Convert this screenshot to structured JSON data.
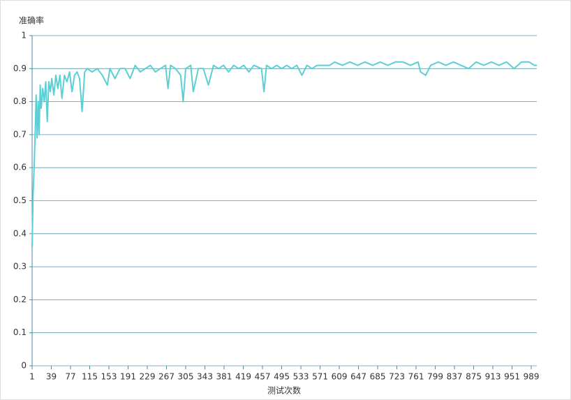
{
  "chart_data": {
    "type": "line",
    "y_label": "准确率",
    "x_label": "测试次数",
    "xlim": [
      1,
      1000
    ],
    "xticks": [
      1,
      39,
      77,
      115,
      153,
      191,
      229,
      267,
      305,
      343,
      381,
      419,
      457,
      495,
      533,
      571,
      609,
      647,
      685,
      723,
      761,
      799,
      837,
      875,
      913,
      951,
      989
    ],
    "ylim": [
      0,
      1
    ],
    "yticks": [
      0,
      0.1,
      0.2,
      0.3,
      0.4,
      0.5,
      0.6,
      0.7,
      0.8,
      0.9,
      1
    ],
    "grid": true,
    "series": [
      {
        "color": "#5ccfd4",
        "x": [
          1,
          2,
          3,
          5,
          7,
          9,
          11,
          13,
          15,
          17,
          19,
          22,
          25,
          28,
          31,
          34,
          37,
          40,
          44,
          48,
          52,
          56,
          60,
          65,
          70,
          75,
          80,
          85,
          90,
          95,
          100,
          105,
          110,
          120,
          130,
          140,
          150,
          155,
          165,
          175,
          185,
          195,
          205,
          215,
          225,
          235,
          245,
          255,
          265,
          270,
          275,
          285,
          295,
          300,
          305,
          315,
          320,
          330,
          340,
          350,
          360,
          370,
          380,
          390,
          400,
          410,
          420,
          430,
          440,
          455,
          460,
          465,
          475,
          485,
          495,
          505,
          515,
          525,
          535,
          545,
          555,
          565,
          575,
          590,
          600,
          615,
          630,
          645,
          660,
          675,
          690,
          705,
          720,
          735,
          750,
          765,
          770,
          780,
          790,
          805,
          820,
          835,
          850,
          865,
          880,
          895,
          910,
          925,
          940,
          955,
          970,
          985,
          995,
          1000
        ],
        "values": [
          0.36,
          0.44,
          0.52,
          0.6,
          0.7,
          0.82,
          0.69,
          0.8,
          0.7,
          0.85,
          0.78,
          0.84,
          0.8,
          0.86,
          0.74,
          0.86,
          0.83,
          0.87,
          0.82,
          0.88,
          0.84,
          0.88,
          0.81,
          0.88,
          0.86,
          0.89,
          0.83,
          0.88,
          0.89,
          0.87,
          0.77,
          0.89,
          0.9,
          0.89,
          0.9,
          0.88,
          0.85,
          0.9,
          0.87,
          0.9,
          0.9,
          0.87,
          0.91,
          0.89,
          0.9,
          0.91,
          0.89,
          0.9,
          0.91,
          0.84,
          0.91,
          0.9,
          0.88,
          0.8,
          0.9,
          0.91,
          0.83,
          0.9,
          0.9,
          0.85,
          0.91,
          0.9,
          0.91,
          0.89,
          0.91,
          0.9,
          0.91,
          0.89,
          0.91,
          0.9,
          0.83,
          0.91,
          0.9,
          0.91,
          0.9,
          0.91,
          0.9,
          0.91,
          0.88,
          0.91,
          0.9,
          0.91,
          0.91,
          0.91,
          0.92,
          0.91,
          0.92,
          0.91,
          0.92,
          0.91,
          0.92,
          0.91,
          0.92,
          0.92,
          0.91,
          0.92,
          0.89,
          0.88,
          0.91,
          0.92,
          0.91,
          0.92,
          0.91,
          0.9,
          0.92,
          0.91,
          0.92,
          0.91,
          0.92,
          0.9,
          0.92,
          0.92,
          0.91,
          0.91
        ]
      }
    ]
  }
}
